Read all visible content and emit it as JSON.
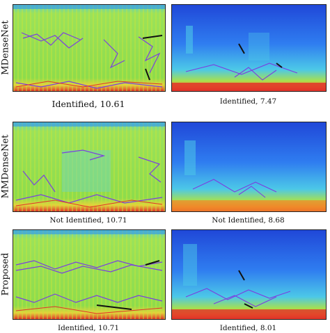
{
  "rows": [
    {
      "label": "MDenseNet",
      "left_caption": "Identified, 10.61",
      "right_caption": "Identified, 7.47"
    },
    {
      "label": "MMDenseNet",
      "left_caption": "Not Identified, 10.71",
      "right_caption": "Not Identified, 8.68"
    },
    {
      "label": "Proposed",
      "left_caption": "Identified, 10.71",
      "right_caption": "Identified, 8.01"
    }
  ],
  "colors": {
    "left_spectrogram_base": "#7fd65a",
    "right_spectrogram_base": "#2f6df0",
    "overlay_line": "#7b3fe0",
    "overlay_dark": "#111111",
    "low_band_red": "#e0342a"
  }
}
